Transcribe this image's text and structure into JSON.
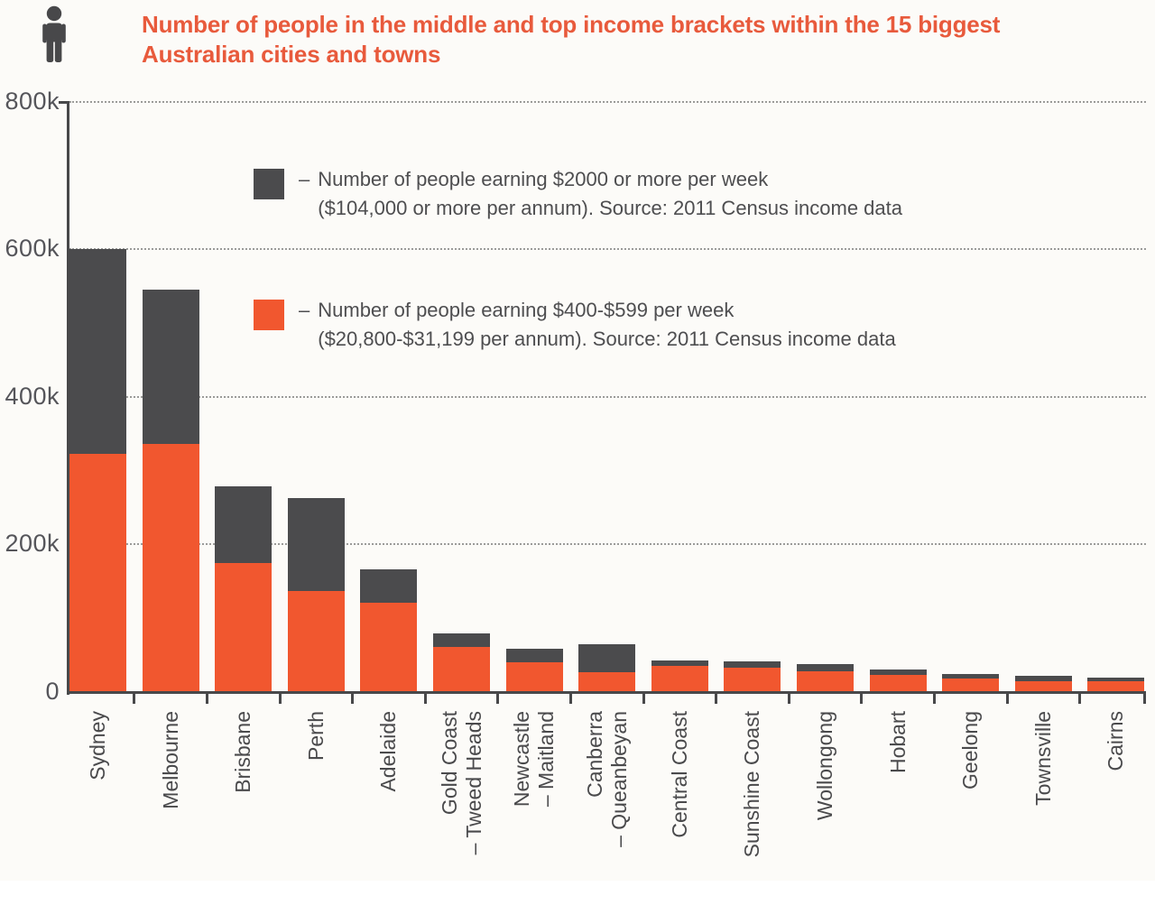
{
  "page": {
    "background_color": "#FCFBF8"
  },
  "header": {
    "title": "Number of people in the middle and top income brackets within the 15 biggest\nAustralian cities and towns",
    "title_color": "#E85A3C",
    "icon_color": "#48484A"
  },
  "legend": {
    "items": [
      {
        "swatch_color": "#4B4B4D",
        "prefix": "–",
        "text": "Number of people earning $2000 or more per week\n($104,000 or more per annum). Source: 2011 Census income data"
      },
      {
        "swatch_color": "#F1572F",
        "prefix": "–",
        "text": "Number of people earning $400-$599 per week\n($20,800-$31,199 per annum). Source: 2011 Census income data"
      }
    ]
  },
  "chart_data": {
    "type": "bar",
    "stacked": true,
    "title": "Number of people in the middle and top income brackets within the 15 biggest Australian cities and towns",
    "xlabel": "",
    "ylabel": "Number of people",
    "unit": "thousands of people",
    "categories": [
      "Sydney",
      "Melbourne",
      "Brisbane",
      "Perth",
      "Adelaide",
      "Gold Coast\n– Tweed Heads",
      "Newcastle\n– Maitland",
      "Canberra\n– Queanbeyan",
      "Central Coast",
      "Sunshine Coast",
      "Wollongong",
      "Hobart",
      "Geelong",
      "Townsville",
      "Cairns"
    ],
    "series": [
      {
        "name": "Number of people earning $2000 or more per week ($104,000 or more per annum). Source: 2011 Census income data",
        "color": "#4B4B4D",
        "stack_position": "top",
        "values": [
          277,
          209,
          103,
          125,
          45,
          18,
          18,
          38,
          7.5,
          9,
          9,
          7,
          6.5,
          7,
          5.5
        ]
      },
      {
        "name": "Number of people earning $400-$599 per week ($20,800-$31,199 per annum). Source: 2011 Census income data",
        "color": "#F1572F",
        "stack_position": "bottom",
        "values": [
          323,
          336,
          175,
          137,
          121,
          61,
          40,
          26,
          35,
          32,
          28,
          23,
          17.5,
          14,
          13.5
        ]
      }
    ],
    "totals": [
      600,
      545,
      278,
      262,
      166,
      79,
      58,
      64,
      42.5,
      41,
      37,
      30,
      24,
      21,
      19
    ],
    "ylim": [
      0,
      800
    ],
    "yticks": [
      {
        "label": "800k",
        "value": 800
      },
      {
        "label": "600k",
        "value": 600
      },
      {
        "label": "400k",
        "value": 400
      },
      {
        "label": "200k",
        "value": 200
      },
      {
        "label": "0",
        "value": 0
      }
    ],
    "grid": "horizontal dotted",
    "legend_position": "inside plot, upper area",
    "x_label_style": "rotated 90deg, reading bottom to top"
  }
}
